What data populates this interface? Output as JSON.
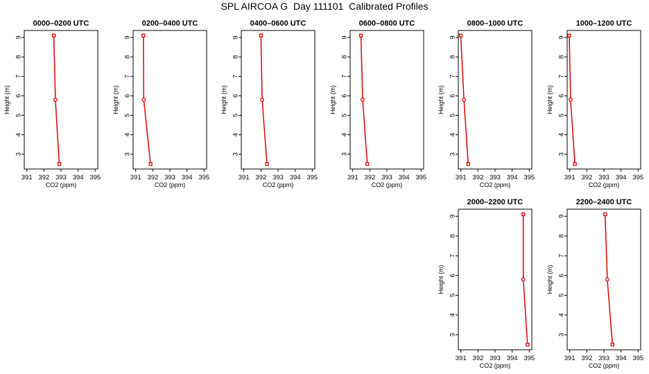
{
  "title": "SPL AIRCOA G  Day 111101  Calibrated Profiles",
  "colors": {
    "series": "#dd0000",
    "axis": "#000000"
  },
  "chart_data": [
    {
      "type": "line",
      "title": "0000–0200 UTC",
      "xlabel": "CO2 (ppm)",
      "ylabel": "Height (m)",
      "xlim": [
        391,
        395
      ],
      "ylim": [
        2.5,
        9.1
      ],
      "xticks": [
        391,
        392,
        393,
        394,
        395
      ],
      "yticks": [
        3,
        4,
        5,
        6,
        7,
        8,
        9
      ],
      "series": [
        {
          "x": [
            392.58,
            392.67,
            392.9
          ],
          "y": [
            9.1,
            5.8,
            2.5
          ]
        }
      ]
    },
    {
      "type": "line",
      "title": "0200–0400 UTC",
      "xlabel": "CO2 (ppm)",
      "ylabel": "Height (m)",
      "xlim": [
        391,
        395
      ],
      "ylim": [
        2.5,
        9.1
      ],
      "xticks": [
        391,
        392,
        393,
        394,
        395
      ],
      "yticks": [
        3,
        4,
        5,
        6,
        7,
        8,
        9
      ],
      "series": [
        {
          "x": [
            391.45,
            391.47,
            391.87
          ],
          "y": [
            9.1,
            5.8,
            2.5
          ]
        }
      ]
    },
    {
      "type": "line",
      "title": "0400–0600 UTC",
      "xlabel": "CO2 (ppm)",
      "ylabel": "Height (m)",
      "xlim": [
        391,
        395
      ],
      "ylim": [
        2.5,
        9.1
      ],
      "xticks": [
        391,
        392,
        393,
        394,
        395
      ],
      "yticks": [
        3,
        4,
        5,
        6,
        7,
        8,
        9
      ],
      "series": [
        {
          "x": [
            392.0,
            392.07,
            392.35
          ],
          "y": [
            9.1,
            5.8,
            2.5
          ]
        }
      ]
    },
    {
      "type": "line",
      "title": "0600–0800 UTC",
      "xlabel": "CO2 (ppm)",
      "ylabel": "Height (m)",
      "xlim": [
        391,
        395
      ],
      "ylim": [
        2.5,
        9.1
      ],
      "xticks": [
        391,
        392,
        393,
        394,
        395
      ],
      "yticks": [
        3,
        4,
        5,
        6,
        7,
        8,
        9
      ],
      "series": [
        {
          "x": [
            391.48,
            391.58,
            391.85
          ],
          "y": [
            9.1,
            5.8,
            2.5
          ]
        }
      ]
    },
    {
      "type": "line",
      "title": "0800–1000 UTC",
      "xlabel": "CO2 (ppm)",
      "ylabel": "Height (m)",
      "xlim": [
        391,
        395
      ],
      "ylim": [
        2.5,
        9.1
      ],
      "xticks": [
        391,
        392,
        393,
        394,
        395
      ],
      "yticks": [
        3,
        4,
        5,
        6,
        7,
        8,
        9
      ],
      "series": [
        {
          "x": [
            390.99,
            391.18,
            391.43
          ],
          "y": [
            9.1,
            5.8,
            2.5
          ]
        }
      ]
    },
    {
      "type": "line",
      "title": "1000–1200 UTC",
      "xlabel": "CO2 (ppm)",
      "ylabel": "Height (m)",
      "xlim": [
        391,
        395
      ],
      "ylim": [
        2.5,
        9.1
      ],
      "xticks": [
        391,
        392,
        393,
        394,
        395
      ],
      "yticks": [
        3,
        4,
        5,
        6,
        7,
        8,
        9
      ],
      "series": [
        {
          "x": [
            390.97,
            391.05,
            391.3
          ],
          "y": [
            9.1,
            5.8,
            2.5
          ]
        }
      ]
    },
    {
      "type": "line",
      "title": "2000–2200 UTC",
      "xlabel": "CO2 (ppm)",
      "ylabel": "Height (m)",
      "xlim": [
        391,
        395
      ],
      "ylim": [
        2.5,
        9.1
      ],
      "xticks": [
        391,
        392,
        393,
        394,
        395
      ],
      "yticks": [
        3,
        4,
        5,
        6,
        7,
        8,
        9
      ],
      "series": [
        {
          "x": [
            394.65,
            394.65,
            394.9
          ],
          "y": [
            9.1,
            5.8,
            2.5
          ]
        }
      ]
    },
    {
      "type": "line",
      "title": "2200–2400 UTC",
      "xlabel": "CO2 (ppm)",
      "ylabel": "Height (m)",
      "xlim": [
        391,
        395
      ],
      "ylim": [
        2.5,
        9.1
      ],
      "xticks": [
        391,
        392,
        393,
        394,
        395
      ],
      "yticks": [
        3,
        4,
        5,
        6,
        7,
        8,
        9
      ],
      "series": [
        {
          "x": [
            393.07,
            393.2,
            393.5
          ],
          "y": [
            9.1,
            5.8,
            2.5
          ]
        }
      ]
    }
  ]
}
